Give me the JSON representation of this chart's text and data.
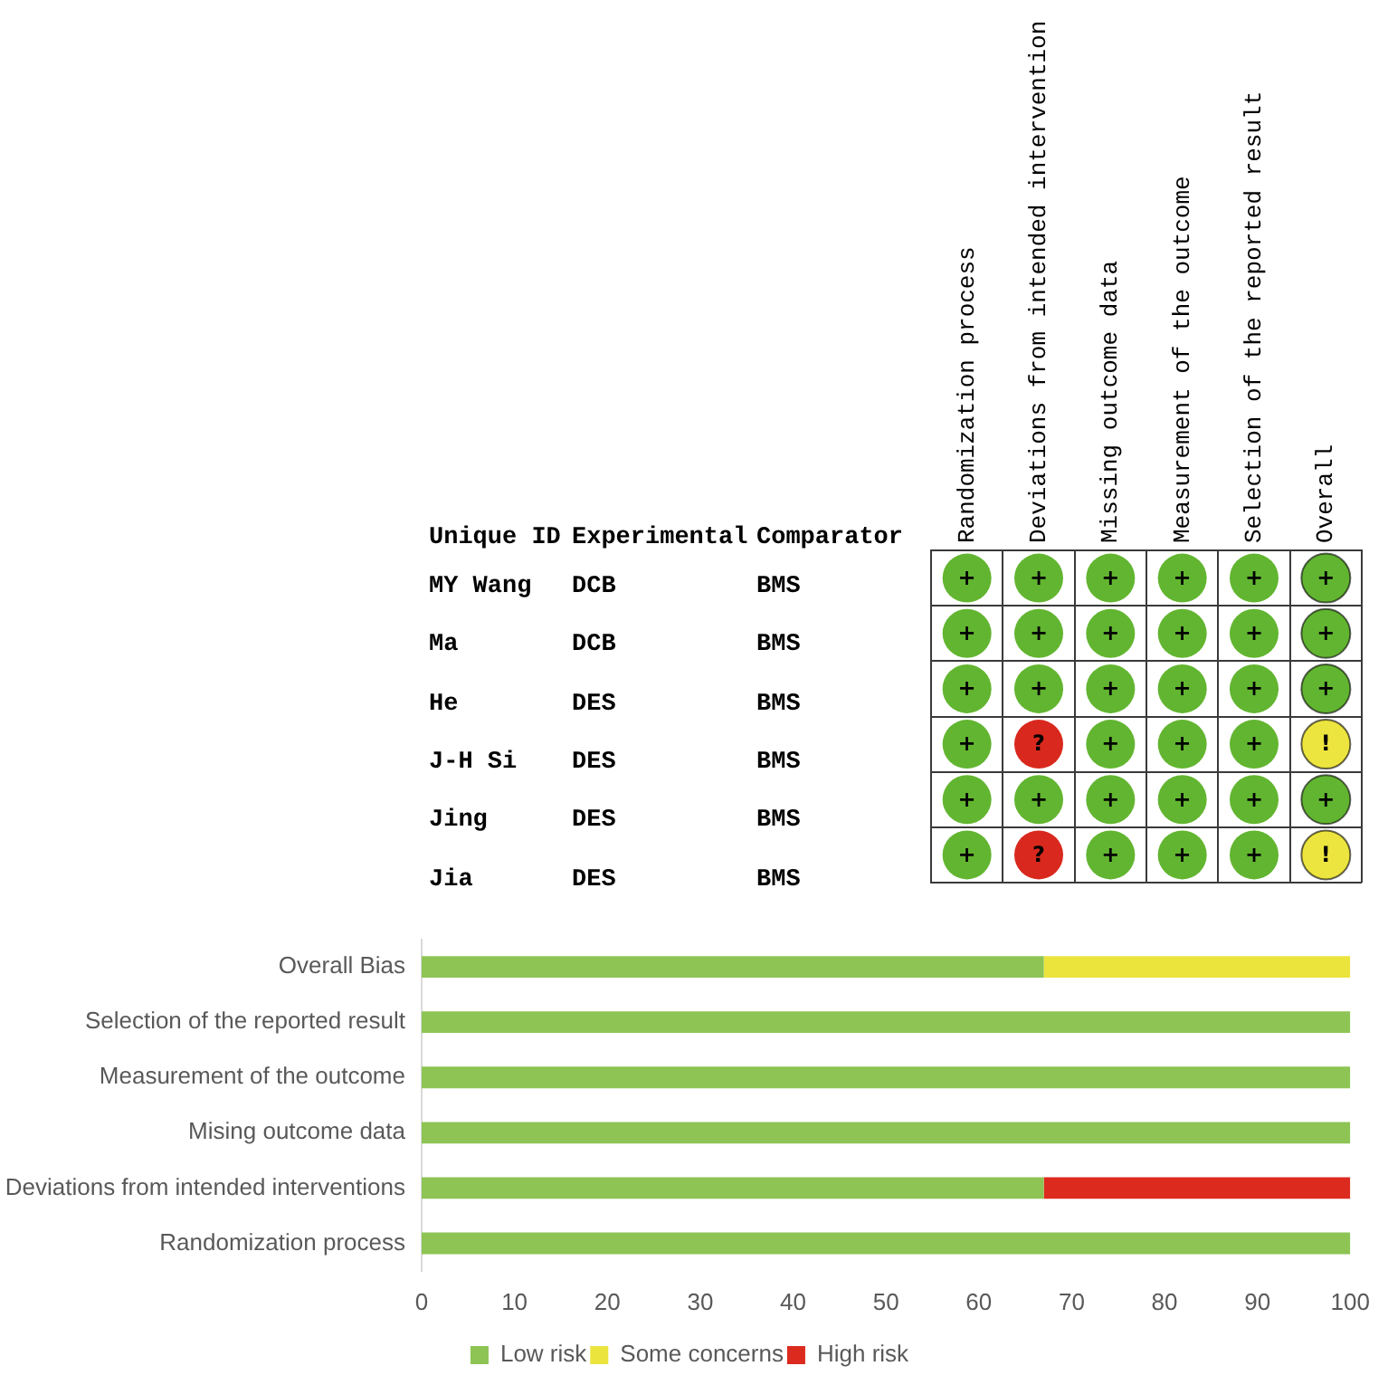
{
  "chart_data": [
    {
      "type": "other",
      "categories": [
        "Unique ID",
        "Experimental",
        "Comparator"
      ],
      "cells": [
        [
          "MY Wang",
          "DCB",
          "BMS"
        ],
        [
          "Ma",
          "DCB",
          "BMS"
        ],
        [
          "He",
          "DES",
          "BMS"
        ],
        [
          "J-H Si",
          "DES",
          "BMS"
        ],
        [
          "Jing",
          "DES",
          "BMS"
        ],
        [
          "Jia",
          "DES",
          "BMS"
        ]
      ]
    },
    {
      "type": "heatmap",
      "grid": true,
      "tick_labels": "x",
      "categories": [
        "Randomization process",
        "Deviations from intended intervention",
        "Missing outcome data",
        "Measurement of the outcome",
        "Selection of the reported result",
        "Overall"
      ],
      "y_categories": [
        null,
        null,
        null,
        null,
        null,
        null
      ],
      "cells": [
        [
          "+",
          "+",
          "+",
          "+",
          "+",
          "+"
        ],
        [
          "+",
          "+",
          "+",
          "+",
          "+",
          "+"
        ],
        [
          "+",
          "+",
          "+",
          "+",
          "+",
          "+"
        ],
        [
          "+",
          "?",
          "+",
          "+",
          "+",
          "!"
        ],
        [
          "+",
          "+",
          "+",
          "+",
          "+",
          "+"
        ],
        [
          "+",
          "?",
          "+",
          "+",
          "+",
          "!"
        ]
      ],
      "colors": [
        [
          "#62b530",
          "#62b530",
          "#62b530",
          "#62b530",
          "#62b530",
          "#62b530"
        ],
        [
          "#62b530",
          "#62b530",
          "#62b530",
          "#62b530",
          "#62b530",
          "#62b530"
        ],
        [
          "#62b530",
          "#62b530",
          "#62b530",
          "#62b530",
          "#62b530",
          "#62b530"
        ],
        [
          "#62b530",
          "#d9281d",
          "#62b530",
          "#62b530",
          "#62b530",
          "#ede53f"
        ],
        [
          "#62b530",
          "#62b530",
          "#62b530",
          "#62b530",
          "#62b530",
          "#62b530"
        ],
        [
          "#62b530",
          "#d9281d",
          "#62b530",
          "#62b530",
          "#62b530",
          "#ede53f"
        ]
      ]
    },
    {
      "type": "bar",
      "orientation": "horizontal",
      "stacked": true,
      "categories": [
        "Overall Bias",
        "Selection of the reported result",
        "Measurement of the outcome",
        "Mising outcome data",
        "Deviations from intended interventions",
        "Randomization process"
      ],
      "series": [
        {
          "name": "Low risk",
          "color": "#8dc454",
          "values": [
            67,
            100,
            100,
            100,
            67,
            100
          ]
        },
        {
          "name": "Some concerns",
          "color": "#ebe43c",
          "values": [
            33,
            0,
            0,
            0,
            0,
            0
          ]
        },
        {
          "name": "High risk",
          "color": "#dc2a1f",
          "values": [
            0,
            0,
            0,
            0,
            33,
            0
          ]
        }
      ],
      "xlim": [
        0,
        100
      ],
      "xticks": [
        0,
        10,
        20,
        30,
        40,
        50,
        60,
        70,
        80,
        90,
        100
      ],
      "legend": "bottom"
    }
  ]
}
